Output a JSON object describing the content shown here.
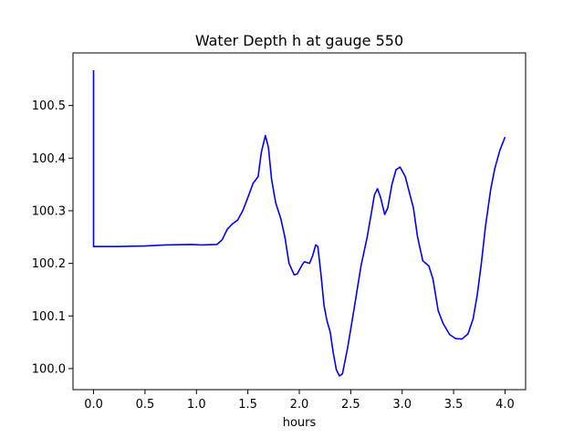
{
  "chart_data": {
    "type": "line",
    "title": "Water Depth h at gauge 550",
    "xlabel": "hours",
    "ylabel": "",
    "xlim": [
      -0.2,
      4.2
    ],
    "ylim": [
      99.96,
      100.6
    ],
    "xticks": [
      0.0,
      0.5,
      1.0,
      1.5,
      2.0,
      2.5,
      3.0,
      3.5,
      4.0
    ],
    "xtick_labels": [
      "0.0",
      "0.5",
      "1.0",
      "1.5",
      "2.0",
      "2.5",
      "3.0",
      "3.5",
      "4.0"
    ],
    "yticks": [
      100.0,
      100.1,
      100.2,
      100.3,
      100.4,
      100.5
    ],
    "ytick_labels": [
      "100.0",
      "100.1",
      "100.2",
      "100.3",
      "100.4",
      "100.5"
    ],
    "grid": false,
    "series": [
      {
        "color": "#0000ff",
        "points": [
          [
            0.0,
            100.567
          ],
          [
            0.0,
            100.232
          ],
          [
            0.2,
            100.232
          ],
          [
            0.5,
            100.233
          ],
          [
            0.7,
            100.235
          ],
          [
            0.95,
            100.236
          ],
          [
            1.05,
            100.235
          ],
          [
            1.2,
            100.236
          ],
          [
            1.25,
            100.245
          ],
          [
            1.3,
            100.265
          ],
          [
            1.35,
            100.275
          ],
          [
            1.4,
            100.282
          ],
          [
            1.45,
            100.3
          ],
          [
            1.5,
            100.325
          ],
          [
            1.55,
            100.352
          ],
          [
            1.6,
            100.365
          ],
          [
            1.63,
            100.41
          ],
          [
            1.67,
            100.443
          ],
          [
            1.7,
            100.42
          ],
          [
            1.73,
            100.36
          ],
          [
            1.77,
            100.315
          ],
          [
            1.82,
            100.285
          ],
          [
            1.86,
            100.25
          ],
          [
            1.9,
            100.2
          ],
          [
            1.95,
            100.178
          ],
          [
            1.98,
            100.18
          ],
          [
            2.03,
            100.198
          ],
          [
            2.05,
            100.203
          ],
          [
            2.1,
            100.2
          ],
          [
            2.13,
            100.215
          ],
          [
            2.16,
            100.235
          ],
          [
            2.18,
            100.232
          ],
          [
            2.21,
            100.18
          ],
          [
            2.24,
            100.12
          ],
          [
            2.27,
            100.09
          ],
          [
            2.3,
            100.07
          ],
          [
            2.33,
            100.03
          ],
          [
            2.36,
            99.998
          ],
          [
            2.39,
            99.986
          ],
          [
            2.42,
            99.99
          ],
          [
            2.47,
            100.04
          ],
          [
            2.53,
            100.11
          ],
          [
            2.6,
            100.195
          ],
          [
            2.66,
            100.25
          ],
          [
            2.7,
            100.295
          ],
          [
            2.73,
            100.33
          ],
          [
            2.76,
            100.342
          ],
          [
            2.79,
            100.325
          ],
          [
            2.83,
            100.293
          ],
          [
            2.86,
            100.305
          ],
          [
            2.9,
            100.35
          ],
          [
            2.94,
            100.378
          ],
          [
            2.98,
            100.383
          ],
          [
            3.03,
            100.365
          ],
          [
            3.07,
            100.335
          ],
          [
            3.11,
            100.305
          ],
          [
            3.15,
            100.25
          ],
          [
            3.2,
            100.205
          ],
          [
            3.26,
            100.195
          ],
          [
            3.3,
            100.17
          ],
          [
            3.35,
            100.11
          ],
          [
            3.4,
            100.085
          ],
          [
            3.46,
            100.065
          ],
          [
            3.52,
            100.057
          ],
          [
            3.58,
            100.056
          ],
          [
            3.64,
            100.066
          ],
          [
            3.69,
            100.095
          ],
          [
            3.73,
            100.14
          ],
          [
            3.77,
            100.2
          ],
          [
            3.81,
            100.27
          ],
          [
            3.86,
            100.34
          ],
          [
            3.9,
            100.38
          ],
          [
            3.95,
            100.415
          ],
          [
            4.0,
            100.44
          ]
        ]
      }
    ]
  }
}
